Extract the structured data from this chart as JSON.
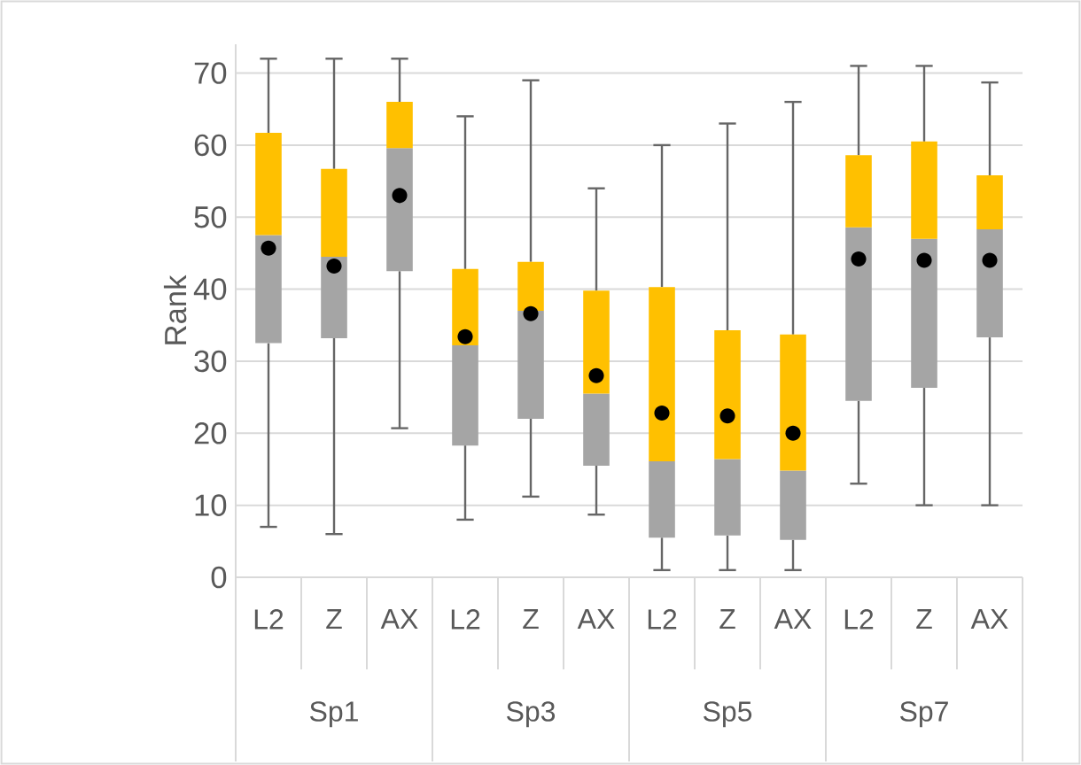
{
  "chart_data": {
    "type": "box",
    "ylabel": "Rank",
    "categories": [
      "L2",
      "Z",
      "AX",
      "L2",
      "Z",
      "AX",
      "L2",
      "Z",
      "AX",
      "L2",
      "Z",
      "AX"
    ],
    "annotations": [
      "Sp1",
      "Sp3",
      "Sp5",
      "Sp7"
    ],
    "color": [
      "#a5a5a5",
      "#ffc000",
      "#000000"
    ],
    "boxes": [
      {
        "low": 7,
        "q1": 32.5,
        "median": 47.5,
        "q3": 61.7,
        "high": 72,
        "mean": 45.7
      },
      {
        "low": 6,
        "q1": 33.2,
        "median": 44.5,
        "q3": 56.7,
        "high": 72,
        "mean": 43.2
      },
      {
        "low": 20.7,
        "q1": 42.5,
        "median": 59.6,
        "q3": 66,
        "high": 72,
        "mean": 53
      },
      {
        "low": 8,
        "q1": 18.3,
        "median": 32.2,
        "q3": 42.8,
        "high": 64,
        "mean": 33.4
      },
      {
        "low": 11.2,
        "q1": 22,
        "median": 37,
        "q3": 43.8,
        "high": 69,
        "mean": 36.6
      },
      {
        "low": 8.7,
        "q1": 15.5,
        "median": 25.5,
        "q3": 39.8,
        "high": 54,
        "mean": 28
      },
      {
        "low": 1,
        "q1": 5.5,
        "median": 16.1,
        "q3": 40.3,
        "high": 60,
        "mean": 22.8
      },
      {
        "low": 1,
        "q1": 5.8,
        "median": 16.4,
        "q3": 34.3,
        "high": 63,
        "mean": 22.4
      },
      {
        "low": 1,
        "q1": 5.2,
        "median": 14.8,
        "q3": 33.7,
        "high": 66,
        "mean": 20
      },
      {
        "low": 13,
        "q1": 24.5,
        "median": 48.6,
        "q3": 58.6,
        "high": 71,
        "mean": 44.2
      },
      {
        "low": 10,
        "q1": 26.3,
        "median": 47,
        "q3": 60.5,
        "high": 71,
        "mean": 44
      },
      {
        "low": 10,
        "q1": 33.3,
        "median": 48.3,
        "q3": 55.8,
        "high": 68.7,
        "mean": 44
      }
    ],
    "ylim": [
      0,
      74
    ],
    "yticks": [
      0,
      10,
      20,
      30,
      40,
      50,
      60,
      70
    ],
    "grid": "y"
  }
}
